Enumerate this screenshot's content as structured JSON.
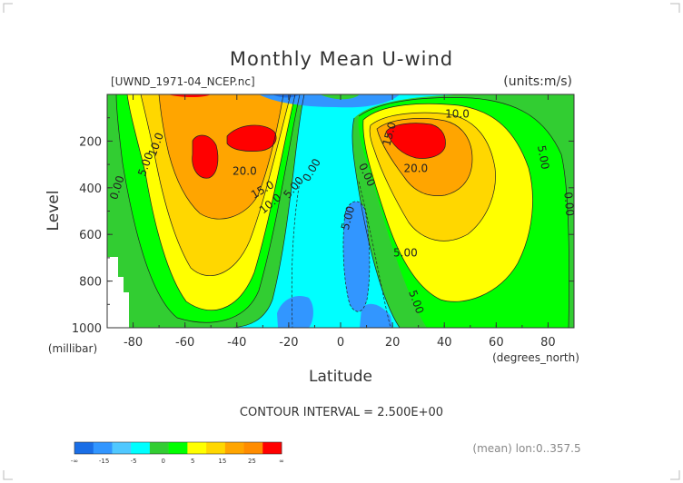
{
  "chart_data": {
    "type": "heatmap",
    "title": "Monthly Mean U-wind",
    "file_label": "[UWND_1971-04_NCEP.nc]",
    "units_label": "(units:m/s)",
    "xlabel": "Latitude",
    "x_units": "(degrees_north)",
    "ylabel": "Level",
    "y_units": "(millibar)",
    "xlim": [
      -90,
      90
    ],
    "ylim": [
      1000,
      0
    ],
    "y_scale": "linear, pressure decreasing upward",
    "x_ticks": [
      -80,
      -60,
      -40,
      -20,
      0,
      20,
      40,
      60,
      80
    ],
    "y_ticks": [
      200,
      400,
      600,
      800,
      1000
    ],
    "contour_interval_text": "CONTOUR INTERVAL = 2.500E+00",
    "mean_text": "(mean) lon:0..357.5",
    "colorbar": {
      "colors": [
        "#1a6ee6",
        "#3296ff",
        "#50c8ff",
        "#00ffff",
        "#32cd32",
        "#00ff00",
        "#ffff00",
        "#ffd700",
        "#ffa500",
        "#ff8c00",
        "#ff0000"
      ],
      "tick_labels": [
        "-∞",
        "-15",
        "-5",
        "0",
        "5",
        "15",
        "25",
        "∞"
      ]
    },
    "contour_labels": [
      {
        "text": "10.0",
        "lat": -71,
        "lev": 215,
        "rot": -70
      },
      {
        "text": "5.00",
        "lat": -75,
        "lev": 300,
        "rot": -70
      },
      {
        "text": "0.00",
        "lat": -86,
        "lev": 400,
        "rot": -72
      },
      {
        "text": "20.0",
        "lat": -37,
        "lev": 330,
        "rot": 0
      },
      {
        "text": "15.0",
        "lat": -30,
        "lev": 410,
        "rot": -30
      },
      {
        "text": "10.0",
        "lat": -27,
        "lev": 470,
        "rot": -40
      },
      {
        "text": "5.00",
        "lat": -18,
        "lev": 400,
        "rot": -50
      },
      {
        "text": "0.00",
        "lat": -11,
        "lev": 325,
        "rot": -60
      },
      {
        "text": "0.00",
        "lat": 10,
        "lev": 345,
        "rot": 65
      },
      {
        "text": "5.00",
        "lat": 3,
        "lev": 530,
        "rot": -75
      },
      {
        "text": "15.0",
        "lat": 19,
        "lev": 170,
        "rot": -75
      },
      {
        "text": "10.0",
        "lat": 45,
        "lev": 85,
        "rot": 0
      },
      {
        "text": "20.0",
        "lat": 29,
        "lev": 320,
        "rot": 0
      },
      {
        "text": "5.00",
        "lat": 78,
        "lev": 270,
        "rot": 80
      },
      {
        "text": "5.00",
        "lat": 25,
        "lev": 680,
        "rot": 0
      },
      {
        "text": "5.00",
        "lat": 29,
        "lev": 890,
        "rot": 70
      },
      {
        "text": "0.00",
        "lat": 96,
        "lev": 470,
        "rot": 85
      }
    ]
  }
}
